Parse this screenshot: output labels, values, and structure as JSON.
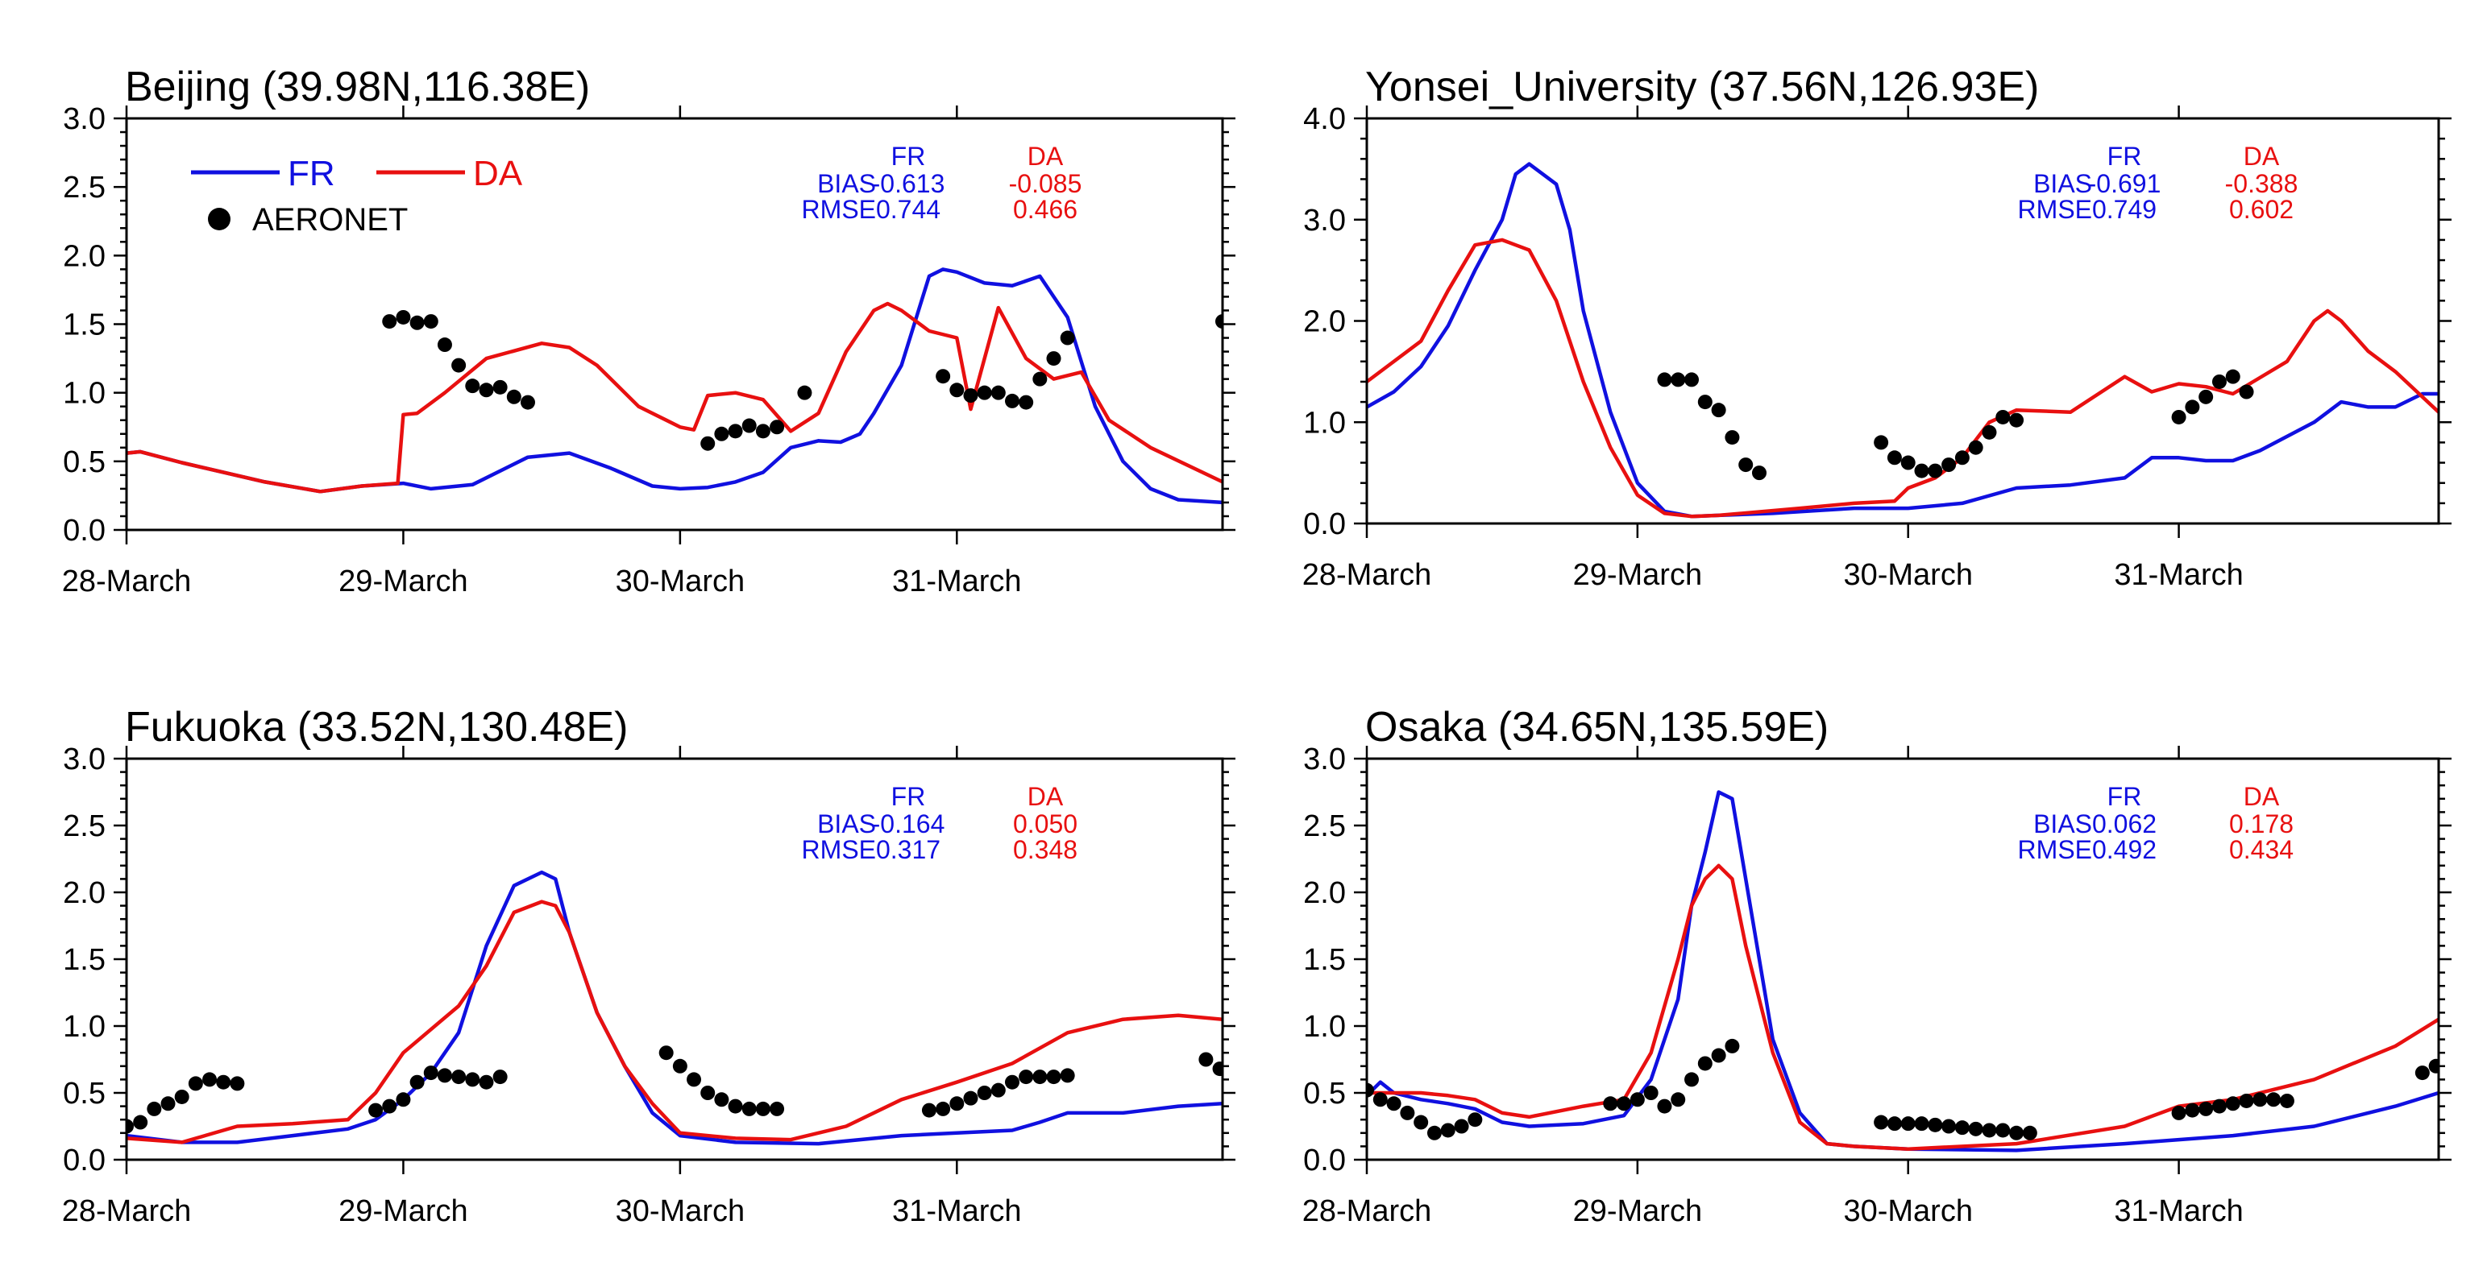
{
  "colors": {
    "FR": "#1010e0",
    "DA": "#e81010",
    "AERONET": "#000000"
  },
  "legend": {
    "fr": "FR",
    "da": "DA",
    "obs": "AERONET"
  },
  "chart_data": [
    {
      "type": "line",
      "title": "Beijing (39.98N,116.38E)",
      "xlabel": "",
      "ylabel": "",
      "xlim": [
        0,
        3.96
      ],
      "ylim": [
        0,
        3.0
      ],
      "yticks": [
        "0.0",
        "0.5",
        "1.0",
        "1.5",
        "2.0",
        "2.5",
        "3.0"
      ],
      "ytick_values": [
        0,
        0.5,
        1.0,
        1.5,
        2.0,
        2.5,
        3.0
      ],
      "xticks": [
        0,
        1,
        2,
        3
      ],
      "xtick_labels": [
        "28-March",
        "29-March",
        "30-March",
        "31-March"
      ],
      "show_legend": true,
      "stats": {
        "header_fr": "FR",
        "header_da": "DA",
        "bias_label": "BIAS",
        "rmse_label": "RMSE",
        "bias_fr": "-0.613",
        "bias_da": "-0.085",
        "rmse_fr": "0.744",
        "rmse_da": "0.466"
      },
      "series": [
        {
          "name": "FR",
          "x": [
            0,
            0.05,
            0.2,
            0.5,
            0.7,
            0.85,
            1.0,
            1.1,
            1.25,
            1.45,
            1.6,
            1.75,
            1.9,
            2.0,
            2.1,
            2.2,
            2.3,
            2.4,
            2.5,
            2.58,
            2.65,
            2.7,
            2.8,
            2.9,
            2.95,
            3.0,
            3.1,
            3.2,
            3.3,
            3.4,
            3.5,
            3.6,
            3.7,
            3.8,
            3.96
          ],
          "y": [
            0.56,
            0.57,
            0.49,
            0.35,
            0.28,
            0.32,
            0.34,
            0.3,
            0.33,
            0.53,
            0.56,
            0.45,
            0.32,
            0.3,
            0.31,
            0.35,
            0.42,
            0.6,
            0.65,
            0.64,
            0.7,
            0.85,
            1.2,
            1.85,
            1.9,
            1.88,
            1.8,
            1.78,
            1.85,
            1.55,
            0.9,
            0.5,
            0.3,
            0.22,
            0.2
          ]
        },
        {
          "name": "DA",
          "x": [
            0,
            0.05,
            0.2,
            0.5,
            0.7,
            0.85,
            0.98,
            1.0,
            1.05,
            1.15,
            1.3,
            1.5,
            1.6,
            1.7,
            1.85,
            1.95,
            2.0,
            2.05,
            2.1,
            2.2,
            2.3,
            2.4,
            2.5,
            2.6,
            2.7,
            2.75,
            2.8,
            2.9,
            3.0,
            3.05,
            3.15,
            3.25,
            3.35,
            3.45,
            3.55,
            3.7,
            3.96
          ],
          "y": [
            0.56,
            0.57,
            0.49,
            0.35,
            0.28,
            0.32,
            0.34,
            0.84,
            0.85,
            1.0,
            1.25,
            1.36,
            1.33,
            1.2,
            0.9,
            0.8,
            0.75,
            0.73,
            0.98,
            1.0,
            0.95,
            0.72,
            0.85,
            1.3,
            1.6,
            1.65,
            1.6,
            1.45,
            1.4,
            0.88,
            1.62,
            1.25,
            1.1,
            1.15,
            0.8,
            0.6,
            0.35
          ]
        },
        {
          "name": "AERONET",
          "marker": "dot",
          "x": [
            0.95,
            1.0,
            1.05,
            1.1,
            1.15,
            1.2,
            1.25,
            1.3,
            1.35,
            1.4,
            1.45,
            2.1,
            2.15,
            2.2,
            2.25,
            2.3,
            2.35,
            2.45,
            2.95,
            3.0,
            3.05,
            3.1,
            3.15,
            3.2,
            3.25,
            3.3,
            3.35,
            3.4,
            3.96
          ],
          "y": [
            1.52,
            1.55,
            1.51,
            1.52,
            1.35,
            1.2,
            1.05,
            1.02,
            1.04,
            0.97,
            0.93,
            0.63,
            0.7,
            0.72,
            0.76,
            0.72,
            0.75,
            1.0,
            1.12,
            1.02,
            0.98,
            1.0,
            1.0,
            0.94,
            0.93,
            1.1,
            1.25,
            1.4,
            1.52
          ]
        }
      ]
    },
    {
      "type": "line",
      "title": "Yonsei_University (37.56N,126.93E)",
      "xlabel": "",
      "ylabel": "",
      "xlim": [
        0,
        3.96
      ],
      "ylim": [
        0,
        4.0
      ],
      "yticks": [
        "0.0",
        "1.0",
        "2.0",
        "3.0",
        "4.0"
      ],
      "ytick_values": [
        0,
        1.0,
        2.0,
        3.0,
        4.0
      ],
      "xticks": [
        0,
        1,
        2,
        3
      ],
      "xtick_labels": [
        "28-March",
        "29-March",
        "30-March",
        "31-March"
      ],
      "show_legend": false,
      "stats": {
        "header_fr": "FR",
        "header_da": "DA",
        "bias_label": "BIAS",
        "rmse_label": "RMSE",
        "bias_fr": "-0.691",
        "bias_da": "-0.388",
        "rmse_fr": "0.749",
        "rmse_da": "0.602"
      },
      "series": [
        {
          "name": "FR",
          "x": [
            0,
            0.1,
            0.2,
            0.3,
            0.4,
            0.5,
            0.55,
            0.6,
            0.7,
            0.75,
            0.8,
            0.9,
            1.0,
            1.1,
            1.2,
            1.3,
            1.5,
            1.8,
            2.0,
            2.2,
            2.4,
            2.6,
            2.8,
            2.9,
            3.0,
            3.1,
            3.2,
            3.3,
            3.5,
            3.6,
            3.7,
            3.8,
            3.9,
            3.96
          ],
          "y": [
            1.15,
            1.3,
            1.55,
            1.95,
            2.5,
            3.0,
            3.45,
            3.55,
            3.35,
            2.9,
            2.1,
            1.1,
            0.4,
            0.12,
            0.07,
            0.08,
            0.1,
            0.15,
            0.15,
            0.2,
            0.35,
            0.38,
            0.45,
            0.65,
            0.65,
            0.62,
            0.62,
            0.72,
            1.0,
            1.2,
            1.15,
            1.15,
            1.28,
            1.28
          ]
        },
        {
          "name": "DA",
          "x": [
            0,
            0.2,
            0.3,
            0.4,
            0.5,
            0.55,
            0.6,
            0.7,
            0.8,
            0.9,
            1.0,
            1.1,
            1.2,
            1.3,
            1.6,
            1.8,
            1.95,
            2.0,
            2.1,
            2.2,
            2.3,
            2.4,
            2.6,
            2.8,
            2.9,
            3.0,
            3.1,
            3.2,
            3.4,
            3.5,
            3.55,
            3.6,
            3.7,
            3.8,
            3.96
          ],
          "y": [
            1.4,
            1.8,
            2.3,
            2.75,
            2.8,
            2.75,
            2.7,
            2.2,
            1.4,
            0.75,
            0.28,
            0.1,
            0.07,
            0.08,
            0.15,
            0.2,
            0.22,
            0.35,
            0.45,
            0.65,
            1.0,
            1.12,
            1.1,
            1.45,
            1.3,
            1.38,
            1.35,
            1.28,
            1.6,
            2.0,
            2.1,
            2.0,
            1.7,
            1.5,
            1.1
          ]
        },
        {
          "name": "AERONET",
          "marker": "dot",
          "x": [
            1.1,
            1.15,
            1.2,
            1.25,
            1.3,
            1.35,
            1.4,
            1.45,
            1.9,
            1.95,
            2.0,
            2.05,
            2.1,
            2.15,
            2.2,
            2.25,
            2.3,
            2.35,
            2.4,
            3.0,
            3.05,
            3.1,
            3.15,
            3.2,
            3.25
          ],
          "y": [
            1.42,
            1.42,
            1.42,
            1.2,
            1.12,
            0.85,
            0.58,
            0.5,
            0.8,
            0.65,
            0.6,
            0.52,
            0.52,
            0.58,
            0.65,
            0.75,
            0.9,
            1.05,
            1.02,
            1.05,
            1.15,
            1.25,
            1.4,
            1.45,
            1.3
          ]
        }
      ]
    },
    {
      "type": "line",
      "title": "Fukuoka (33.52N,130.48E)",
      "xlabel": "",
      "ylabel": "",
      "xlim": [
        0,
        3.96
      ],
      "ylim": [
        0,
        3.0
      ],
      "yticks": [
        "0.0",
        "0.5",
        "1.0",
        "1.5",
        "2.0",
        "2.5",
        "3.0"
      ],
      "ytick_values": [
        0,
        0.5,
        1.0,
        1.5,
        2.0,
        2.5,
        3.0
      ],
      "xticks": [
        0,
        1,
        2,
        3
      ],
      "xtick_labels": [
        "28-March",
        "29-March",
        "30-March",
        "31-March"
      ],
      "show_legend": false,
      "stats": {
        "header_fr": "FR",
        "header_da": "DA",
        "bias_label": "BIAS",
        "rmse_label": "RMSE",
        "bias_fr": "-0.164",
        "bias_da": "0.050",
        "rmse_fr": "0.317",
        "rmse_da": "0.348"
      },
      "series": [
        {
          "name": "FR",
          "x": [
            0,
            0.2,
            0.4,
            0.6,
            0.8,
            0.9,
            1.0,
            1.1,
            1.2,
            1.3,
            1.4,
            1.5,
            1.55,
            1.6,
            1.7,
            1.8,
            1.9,
            2.0,
            2.2,
            2.5,
            2.8,
            3.0,
            3.2,
            3.3,
            3.4,
            3.6,
            3.8,
            3.96
          ],
          "y": [
            0.18,
            0.13,
            0.13,
            0.18,
            0.23,
            0.3,
            0.45,
            0.65,
            0.95,
            1.6,
            2.05,
            2.15,
            2.1,
            1.7,
            1.1,
            0.7,
            0.35,
            0.18,
            0.13,
            0.12,
            0.18,
            0.2,
            0.22,
            0.28,
            0.35,
            0.35,
            0.4,
            0.42
          ]
        },
        {
          "name": "DA",
          "x": [
            0,
            0.2,
            0.4,
            0.6,
            0.8,
            0.9,
            1.0,
            1.2,
            1.3,
            1.4,
            1.5,
            1.55,
            1.6,
            1.7,
            1.8,
            1.9,
            2.0,
            2.2,
            2.4,
            2.6,
            2.8,
            3.0,
            3.2,
            3.4,
            3.6,
            3.8,
            3.96
          ],
          "y": [
            0.16,
            0.13,
            0.25,
            0.27,
            0.3,
            0.5,
            0.8,
            1.15,
            1.45,
            1.85,
            1.93,
            1.9,
            1.7,
            1.1,
            0.7,
            0.42,
            0.2,
            0.16,
            0.15,
            0.25,
            0.45,
            0.58,
            0.72,
            0.95,
            1.05,
            1.08,
            1.05
          ]
        },
        {
          "name": "AERONET",
          "marker": "dot",
          "x": [
            0,
            0.05,
            0.1,
            0.15,
            0.2,
            0.25,
            0.3,
            0.35,
            0.4,
            0.9,
            0.95,
            1.0,
            1.05,
            1.1,
            1.15,
            1.2,
            1.25,
            1.3,
            1.35,
            1.95,
            2.0,
            2.05,
            2.1,
            2.15,
            2.2,
            2.25,
            2.3,
            2.35,
            2.9,
            2.95,
            3.0,
            3.05,
            3.1,
            3.15,
            3.2,
            3.25,
            3.3,
            3.35,
            3.4,
            3.9,
            3.95
          ],
          "y": [
            0.25,
            0.28,
            0.38,
            0.42,
            0.47,
            0.57,
            0.6,
            0.58,
            0.57,
            0.37,
            0.4,
            0.45,
            0.58,
            0.65,
            0.63,
            0.62,
            0.6,
            0.58,
            0.62,
            0.8,
            0.7,
            0.6,
            0.5,
            0.45,
            0.4,
            0.38,
            0.38,
            0.38,
            0.37,
            0.38,
            0.42,
            0.46,
            0.5,
            0.52,
            0.58,
            0.62,
            0.62,
            0.62,
            0.63,
            0.75,
            0.68
          ]
        }
      ]
    },
    {
      "type": "line",
      "title": "Osaka (34.65N,135.59E)",
      "xlabel": "",
      "ylabel": "",
      "xlim": [
        0,
        3.96
      ],
      "ylim": [
        0,
        3.0
      ],
      "yticks": [
        "0.0",
        "0.5",
        "1.0",
        "1.5",
        "2.0",
        "2.5",
        "3.0"
      ],
      "ytick_values": [
        0,
        0.5,
        1.0,
        1.5,
        2.0,
        2.5,
        3.0
      ],
      "xticks": [
        0,
        1,
        2,
        3
      ],
      "xtick_labels": [
        "28-March",
        "29-March",
        "30-March",
        "31-March"
      ],
      "show_legend": false,
      "stats": {
        "header_fr": "FR",
        "header_da": "DA",
        "bias_label": "BIAS",
        "rmse_label": "RMSE",
        "bias_fr": "0.062",
        "bias_da": "0.178",
        "rmse_fr": "0.492",
        "rmse_da": "0.434"
      },
      "series": [
        {
          "name": "FR",
          "x": [
            0,
            0.05,
            0.1,
            0.2,
            0.3,
            0.4,
            0.5,
            0.6,
            0.8,
            0.95,
            1.05,
            1.15,
            1.2,
            1.25,
            1.3,
            1.35,
            1.4,
            1.5,
            1.6,
            1.7,
            1.8,
            2.0,
            2.4,
            2.8,
            3.0,
            3.2,
            3.5,
            3.8,
            3.96
          ],
          "y": [
            0.48,
            0.58,
            0.5,
            0.45,
            0.42,
            0.38,
            0.28,
            0.25,
            0.27,
            0.33,
            0.6,
            1.2,
            1.9,
            2.3,
            2.75,
            2.7,
            2.1,
            0.9,
            0.35,
            0.12,
            0.1,
            0.08,
            0.07,
            0.12,
            0.15,
            0.18,
            0.25,
            0.4,
            0.5
          ]
        },
        {
          "name": "DA",
          "x": [
            0,
            0.1,
            0.2,
            0.3,
            0.4,
            0.5,
            0.6,
            0.8,
            0.95,
            1.05,
            1.15,
            1.2,
            1.25,
            1.3,
            1.35,
            1.4,
            1.5,
            1.6,
            1.7,
            1.8,
            2.0,
            2.4,
            2.8,
            3.0,
            3.2,
            3.5,
            3.8,
            3.96
          ],
          "y": [
            0.5,
            0.5,
            0.5,
            0.48,
            0.45,
            0.35,
            0.32,
            0.4,
            0.45,
            0.8,
            1.5,
            1.9,
            2.1,
            2.2,
            2.1,
            1.6,
            0.8,
            0.28,
            0.12,
            0.1,
            0.08,
            0.12,
            0.25,
            0.4,
            0.45,
            0.6,
            0.85,
            1.05
          ]
        },
        {
          "name": "AERONET",
          "marker": "dot",
          "x": [
            0,
            0.05,
            0.1,
            0.15,
            0.2,
            0.25,
            0.3,
            0.35,
            0.4,
            0.9,
            0.95,
            1.0,
            1.05,
            1.1,
            1.15,
            1.2,
            1.25,
            1.3,
            1.35,
            1.9,
            1.95,
            2.0,
            2.05,
            2.1,
            2.15,
            2.2,
            2.25,
            2.3,
            2.35,
            2.4,
            2.45,
            3.0,
            3.05,
            3.1,
            3.15,
            3.2,
            3.25,
            3.3,
            3.35,
            3.4,
            3.9,
            3.95
          ],
          "y": [
            0.52,
            0.45,
            0.42,
            0.35,
            0.28,
            0.2,
            0.22,
            0.25,
            0.3,
            0.42,
            0.42,
            0.45,
            0.5,
            0.4,
            0.45,
            0.6,
            0.72,
            0.78,
            0.85,
            0.28,
            0.27,
            0.27,
            0.27,
            0.26,
            0.25,
            0.24,
            0.23,
            0.22,
            0.22,
            0.2,
            0.2,
            0.35,
            0.37,
            0.38,
            0.4,
            0.42,
            0.44,
            0.45,
            0.45,
            0.44,
            0.65,
            0.7
          ]
        }
      ]
    }
  ]
}
